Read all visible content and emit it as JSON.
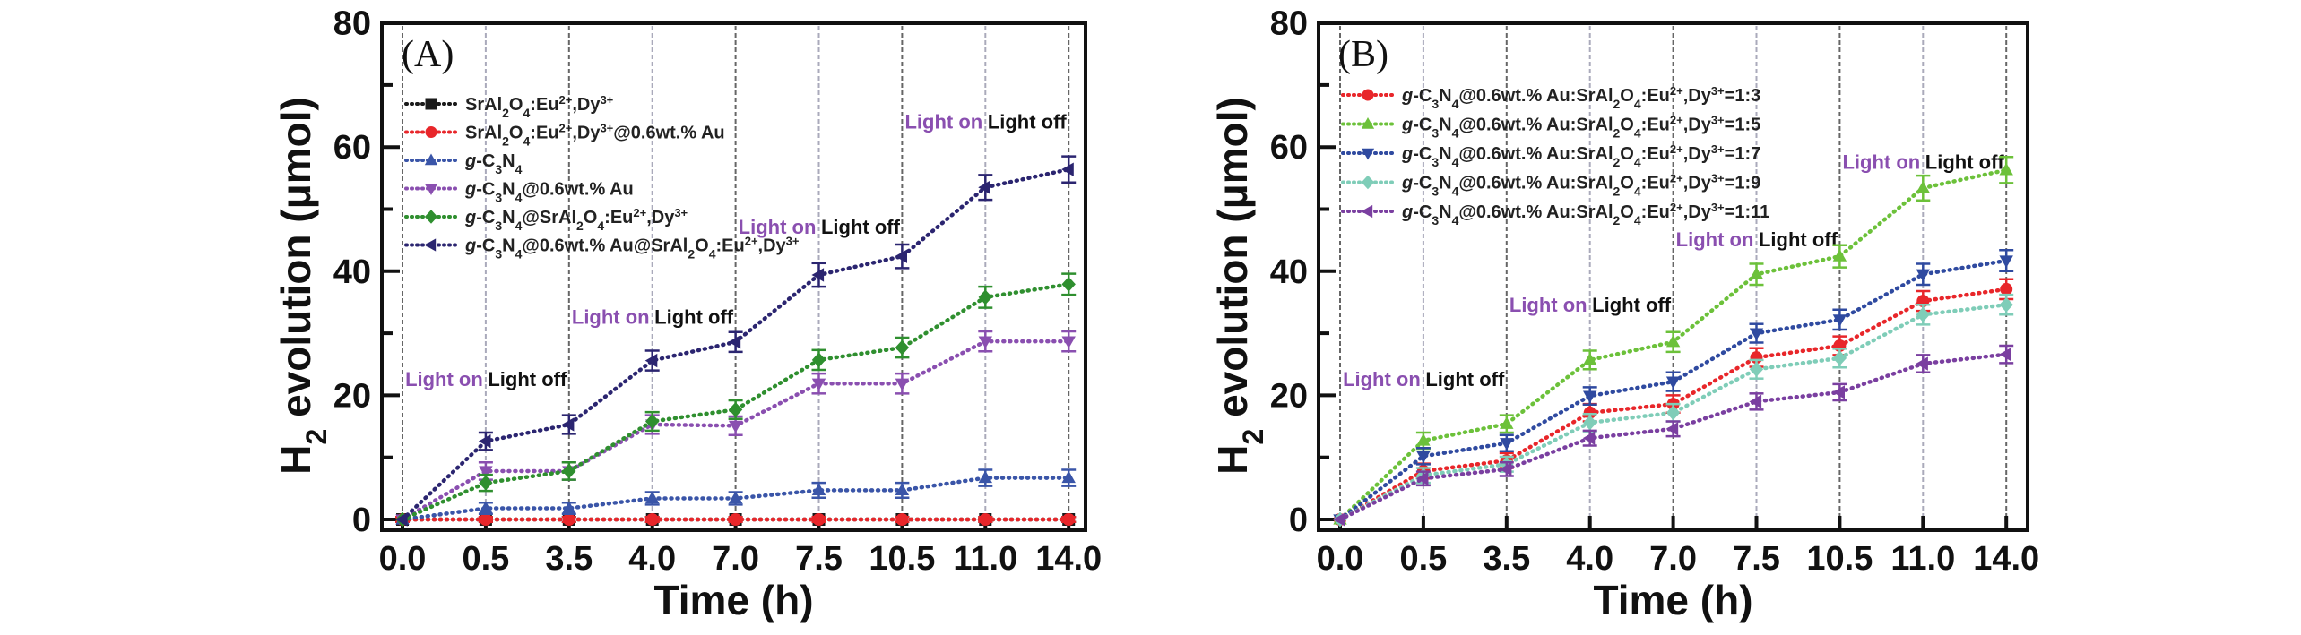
{
  "chart_data": [
    {
      "type": "line",
      "panel_label": "(A)",
      "title": "",
      "xlabel": "Time (h)",
      "ylabel": "H2 evolution (μmol)",
      "ylabel_parts": {
        "pre": "H",
        "sub": "2",
        "post": " evolution (μmol)"
      },
      "categories": [
        "0.0",
        "0.5",
        "3.5",
        "4.0",
        "7.0",
        "7.5",
        "10.5",
        "11.0",
        "14.0"
      ],
      "ylim": [
        0,
        80
      ],
      "yticks": [
        "0",
        "20",
        "40",
        "60",
        "80"
      ],
      "grid": "vertical dashed lines at each category",
      "legend_position": "top-left",
      "series": [
        {
          "name": "SrAl2O4:Eu2+,Dy3+",
          "label_parts": [
            [
              "SrAl",
              ""
            ],
            [
              "2",
              "sub"
            ],
            [
              "O",
              ""
            ],
            [
              "4",
              "sub"
            ],
            [
              ":Eu",
              ""
            ],
            [
              "2+",
              "sup"
            ],
            [
              ",Dy",
              ""
            ],
            [
              "3+",
              "sup"
            ]
          ],
          "color": "#1a1a1a",
          "marker": "square",
          "values": [
            0,
            0,
            0,
            0,
            0,
            0,
            0,
            0,
            0
          ],
          "errors": [
            0.4,
            0.4,
            0.4,
            0.4,
            0.4,
            0.4,
            0.4,
            0.4,
            0.4
          ]
        },
        {
          "name": "SrAl2O4:Eu2+,Dy3+@0.6wt.% Au",
          "label_parts": [
            [
              "SrAl",
              ""
            ],
            [
              "2",
              "sub"
            ],
            [
              "O",
              ""
            ],
            [
              "4",
              "sub"
            ],
            [
              ":Eu",
              ""
            ],
            [
              "2+",
              "sup"
            ],
            [
              ",Dy",
              ""
            ],
            [
              "3+",
              "sup"
            ],
            [
              "@0.6wt.% Au",
              ""
            ]
          ],
          "color": "#e8262a",
          "marker": "circle",
          "values": [
            0,
            0,
            0,
            0,
            0,
            0,
            0,
            0,
            0
          ],
          "errors": [
            0.4,
            0.4,
            0.4,
            0.4,
            0.4,
            0.4,
            0.4,
            0.4,
            0.4
          ]
        },
        {
          "name": "g-C3N4",
          "label_parts": [
            [
              "g",
              "ital"
            ],
            [
              "-C",
              ""
            ],
            [
              "3",
              "sub"
            ],
            [
              "N",
              ""
            ],
            [
              "4",
              "sub"
            ]
          ],
          "color": "#3a55a8",
          "marker": "triangle-up",
          "values": [
            0,
            1.8,
            1.8,
            3.4,
            3.4,
            4.7,
            4.7,
            6.7,
            6.7
          ],
          "errors": [
            0.3,
            0.9,
            0.9,
            1.0,
            1.0,
            1.2,
            1.2,
            1.3,
            1.3
          ]
        },
        {
          "name": "g-C3N4@0.6wt.% Au",
          "label_parts": [
            [
              "g",
              "ital"
            ],
            [
              "-C",
              ""
            ],
            [
              "3",
              "sub"
            ],
            [
              "N",
              ""
            ],
            [
              "4",
              "sub"
            ],
            [
              "@0.6wt.% Au",
              ""
            ]
          ],
          "color": "#8a4fb0",
          "marker": "triangle-down",
          "values": [
            0,
            7.8,
            7.8,
            15.3,
            15.1,
            21.9,
            21.9,
            28.7,
            28.7
          ],
          "errors": [
            0.3,
            1.4,
            1.4,
            1.5,
            1.5,
            1.6,
            1.6,
            1.6,
            1.6
          ]
        },
        {
          "name": "g-C3N4@SrAl2O4:Eu2+,Dy3+",
          "label_parts": [
            [
              "g",
              "ital"
            ],
            [
              "-C",
              ""
            ],
            [
              "3",
              "sub"
            ],
            [
              "N",
              ""
            ],
            [
              "4",
              "sub"
            ],
            [
              "@SrAl",
              ""
            ],
            [
              "2",
              "sub"
            ],
            [
              "O",
              ""
            ],
            [
              "4",
              "sub"
            ],
            [
              ":Eu",
              ""
            ],
            [
              "2+",
              "sup"
            ],
            [
              ",Dy",
              ""
            ],
            [
              "3+",
              "sup"
            ]
          ],
          "color": "#2f8f2f",
          "marker": "diamond",
          "values": [
            0,
            5.9,
            7.8,
            15.8,
            17.7,
            25.7,
            27.7,
            35.8,
            37.9
          ],
          "errors": [
            0.3,
            1.3,
            1.4,
            1.5,
            1.5,
            1.6,
            1.6,
            1.7,
            1.7
          ]
        },
        {
          "name": "g-C3N4@0.6wt.% Au@SrAl2O4:Eu2+,Dy3+",
          "label_parts": [
            [
              "g",
              "ital"
            ],
            [
              "-C",
              ""
            ],
            [
              "3",
              "sub"
            ],
            [
              "N",
              ""
            ],
            [
              "4",
              "sub"
            ],
            [
              "@0.6wt.% Au@SrAl",
              ""
            ],
            [
              "2",
              "sub"
            ],
            [
              "O",
              ""
            ],
            [
              "4",
              "sub"
            ],
            [
              ":Eu",
              ""
            ],
            [
              "2+",
              "sup"
            ],
            [
              ",Dy",
              ""
            ],
            [
              "3+",
              "sup"
            ]
          ],
          "color": "#2b2570",
          "marker": "triangle-left",
          "values": [
            0,
            12.6,
            15.3,
            25.6,
            28.6,
            39.4,
            42.4,
            53.5,
            56.4
          ],
          "errors": [
            0.3,
            1.4,
            1.5,
            1.6,
            1.6,
            1.9,
            1.9,
            2.0,
            2.1
          ]
        }
      ],
      "annotations": [
        {
          "on": "Light on",
          "off": "Light off",
          "between": [
            "0.0",
            "0.5",
            "3.5"
          ],
          "y": 21.5
        },
        {
          "on": "Light on",
          "off": "Light off",
          "between": [
            "3.5",
            "4.0",
            "7.0"
          ],
          "y": 31.5
        },
        {
          "on": "Light on",
          "off": "Light off",
          "between": [
            "7.0",
            "7.5",
            "10.5"
          ],
          "y": 46
        },
        {
          "on": "Light on",
          "off": "Light off",
          "between": [
            "10.5",
            "11.0",
            "14.0"
          ],
          "y": 63
        }
      ]
    },
    {
      "type": "line",
      "panel_label": "(B)",
      "title": "",
      "xlabel": "Time (h)",
      "ylabel": "H2 evolution (μmol)",
      "ylabel_parts": {
        "pre": "H",
        "sub": "2",
        "post": " evolution (μmol)"
      },
      "categories": [
        "0.0",
        "0.5",
        "3.5",
        "4.0",
        "7.0",
        "7.5",
        "10.5",
        "11.0",
        "14.0"
      ],
      "ylim": [
        0,
        80
      ],
      "yticks": [
        "0",
        "20",
        "40",
        "60",
        "80"
      ],
      "grid": "vertical dashed lines at each category",
      "legend_position": "top-left",
      "series": [
        {
          "name": "g-C3N4@0.6wt.% Au:SrAl2O4:Eu2+,Dy3+=1:3",
          "ratio": "=1:3",
          "color": "#e8262a",
          "marker": "circle",
          "values": [
            0,
            7.8,
            9.5,
            17.2,
            18.6,
            26.1,
            28.0,
            35.2,
            37.1
          ],
          "errors": [
            0.3,
            1.2,
            1.2,
            1.4,
            1.4,
            1.5,
            1.5,
            1.6,
            1.6
          ]
        },
        {
          "name": "g-C3N4@0.6wt.% Au:SrAl2O4:Eu2+,Dy3+=1:5",
          "ratio": "=1:5",
          "color": "#6cc13a",
          "marker": "triangle-up",
          "values": [
            0,
            12.7,
            15.4,
            25.7,
            28.6,
            39.5,
            42.4,
            53.4,
            56.3
          ],
          "errors": [
            0.3,
            1.3,
            1.4,
            1.5,
            1.6,
            1.7,
            1.8,
            2.0,
            2.1
          ]
        },
        {
          "name": "g-C3N4@0.6wt.% Au:SrAl2O4:Eu2+,Dy3+=1:7",
          "ratio": "=1:7",
          "color": "#2f4aa0",
          "marker": "triangle-down",
          "values": [
            0,
            10.2,
            12.3,
            19.9,
            22.2,
            30.0,
            32.2,
            39.5,
            41.7
          ],
          "errors": [
            0.3,
            1.3,
            1.3,
            1.4,
            1.5,
            1.5,
            1.6,
            1.7,
            1.7
          ]
        },
        {
          "name": "g-C3N4@0.6wt.% Au:SrAl2O4:Eu2+,Dy3+=1:9",
          "ratio": "=1:9",
          "color": "#7fcdb8",
          "marker": "diamond",
          "values": [
            0,
            7.1,
            8.9,
            15.6,
            17.2,
            24.2,
            26.0,
            33.0,
            34.6
          ],
          "errors": [
            0.3,
            1.2,
            1.2,
            1.4,
            1.4,
            1.5,
            1.5,
            1.6,
            1.6
          ]
        },
        {
          "name": "g-C3N4@0.6wt.% Au:SrAl2O4:Eu2+,Dy3+=1:11",
          "ratio": "=1:11",
          "color": "#7a3fa0",
          "marker": "triangle-left",
          "values": [
            0,
            6.6,
            8.1,
            13.1,
            14.6,
            19.0,
            20.5,
            25.1,
            26.6
          ],
          "errors": [
            0.3,
            1.1,
            1.1,
            1.2,
            1.2,
            1.3,
            1.3,
            1.4,
            1.4
          ]
        }
      ],
      "legend_prefix_parts": [
        [
          "g",
          "ital"
        ],
        [
          "-C",
          ""
        ],
        [
          "3",
          "sub"
        ],
        [
          "N",
          ""
        ],
        [
          "4",
          "sub"
        ],
        [
          "@0.6wt.% Au:SrAl",
          ""
        ],
        [
          "2",
          "sub"
        ],
        [
          "O",
          ""
        ],
        [
          "4",
          "sub"
        ],
        [
          ":Eu",
          ""
        ],
        [
          "2+",
          "sup"
        ],
        [
          ",Dy",
          ""
        ],
        [
          "3+",
          "sup"
        ]
      ],
      "annotations": [
        {
          "on": "Light on",
          "off": "Light off",
          "between": [
            "0.0",
            "0.5",
            "3.5"
          ],
          "y": 21.5
        },
        {
          "on": "Light on",
          "off": "Light off",
          "between": [
            "3.5",
            "4.0",
            "7.0"
          ],
          "y": 33.5
        },
        {
          "on": "Light on",
          "off": "Light off",
          "between": [
            "7.0",
            "7.5",
            "10.5"
          ],
          "y": 44
        },
        {
          "on": "Light on",
          "off": "Light off",
          "between": [
            "10.5",
            "11.0",
            "14.0"
          ],
          "y": 56.5
        }
      ]
    }
  ]
}
